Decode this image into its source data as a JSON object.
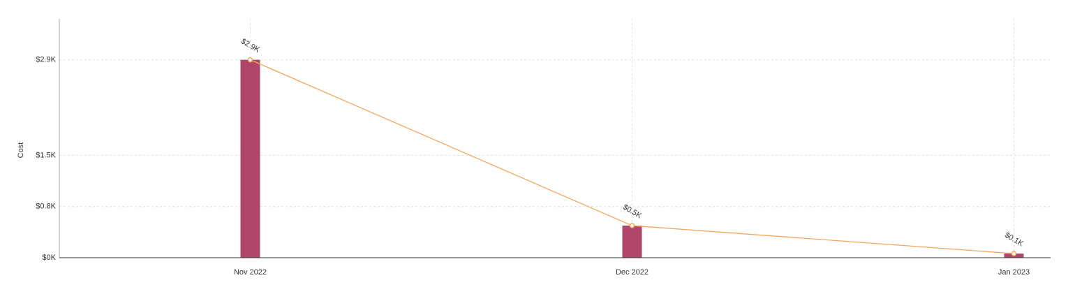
{
  "chart_data": {
    "type": "bar-line",
    "y_label": "Cost",
    "categories": [
      "Nov 2022",
      "Dec 2022",
      "Jan 2023"
    ],
    "series": [
      {
        "type": "bar",
        "color": "#b0476a",
        "values": [
          2900,
          470,
          60
        ]
      },
      {
        "type": "line",
        "color": "#f5a55a",
        "values": [
          2900,
          470,
          60
        ],
        "value_labels": [
          "$2.9K",
          "$0.5K",
          "$0.1K"
        ]
      }
    ],
    "ylim": [
      0,
      3500
    ],
    "yticks": [
      {
        "value": 0,
        "label": "$0K"
      },
      {
        "value": 750,
        "label": "$0.8K"
      },
      {
        "value": 1500,
        "label": "$1.5K"
      },
      {
        "value": 2900,
        "label": "$2.9K"
      }
    ],
    "grid": true
  }
}
